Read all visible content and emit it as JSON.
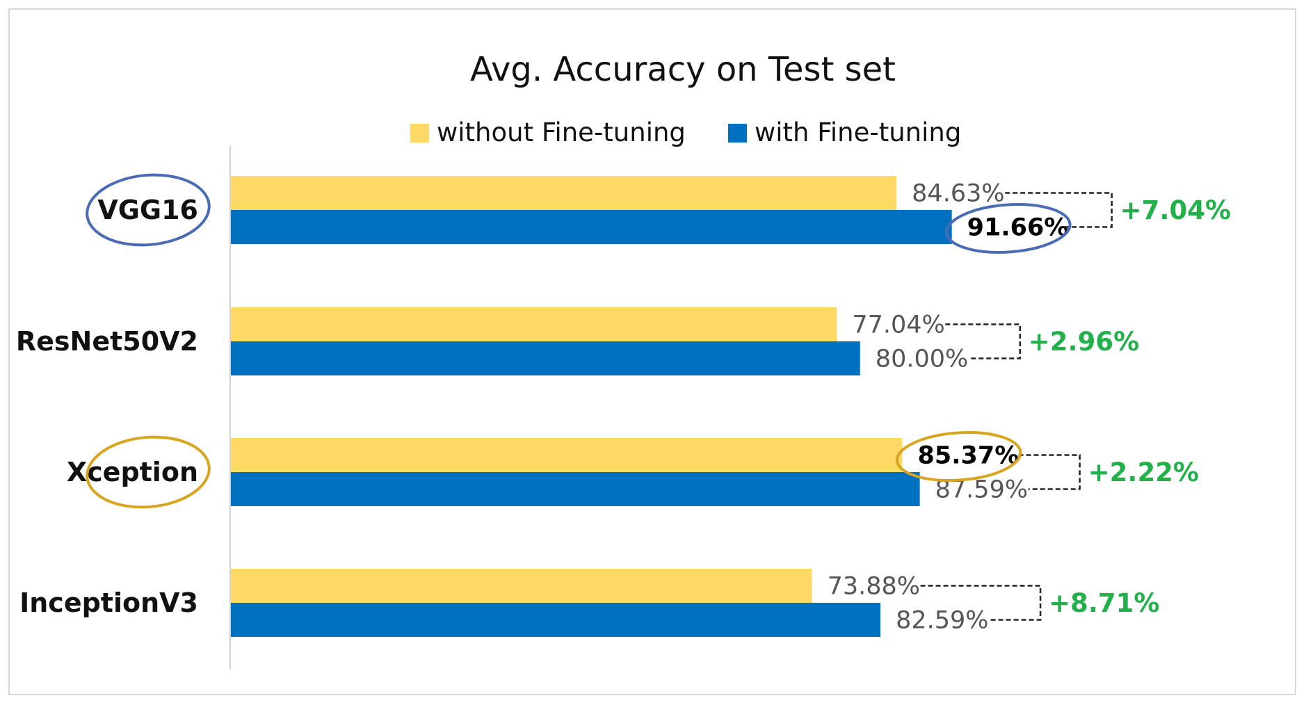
{
  "chart_data": {
    "type": "bar",
    "orientation": "horizontal",
    "title": "Avg. Accuracy on Test set",
    "categories": [
      "VGG16",
      "ResNet50V2",
      "Xception",
      "InceptionV3"
    ],
    "series": [
      {
        "name": "without Fine-tuning",
        "color": "#FFD966",
        "values": [
          84.63,
          77.04,
          85.37,
          73.88
        ],
        "labels": [
          "84.63%",
          "77.04%",
          "85.37%",
          "73.88%"
        ]
      },
      {
        "name": "with Fine-tuning",
        "color": "#0070C0",
        "values": [
          91.66,
          80.0,
          87.59,
          82.59
        ],
        "labels": [
          "91.66%",
          "80.00%",
          "87.59%",
          "82.59%"
        ]
      }
    ],
    "deltas": [
      "+7.04%",
      "+2.96%",
      "+2.22%",
      "+8.71%"
    ],
    "delta_color": "#22B04B",
    "highlights": [
      {
        "category": "VGG16",
        "label_color": "#4A6BB5",
        "value_series": "with Fine-tuning"
      },
      {
        "category": "Xception",
        "label_color": "#D9A520",
        "value_series": "without Fine-tuning"
      }
    ],
    "xlim": [
      0,
      100
    ],
    "grid": false,
    "legend_position": "top"
  }
}
